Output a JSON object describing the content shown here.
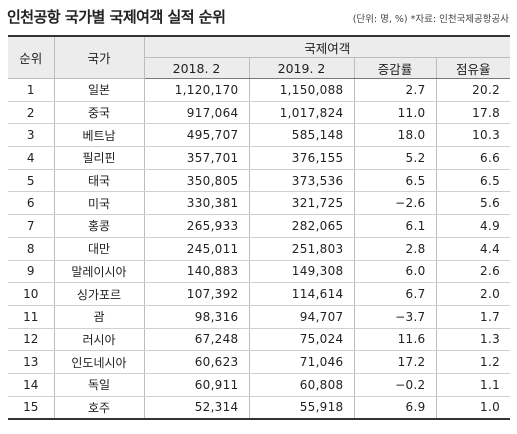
{
  "title": "인천공항 국가별 국제여객 실적 순위",
  "unit_note": "(단위: 명, %) *자료: 인천국제공항공사",
  "headers": {
    "rank": "순위",
    "country": "국가",
    "group": "국제여객",
    "y2018": "2018. 2",
    "y2019": "2019. 2",
    "change": "증감률",
    "share": "점유율"
  },
  "rows": [
    {
      "rank": "1",
      "country": "일본",
      "y2018": "1,120,170",
      "y2019": "1,150,088",
      "change": "2.7",
      "share": "20.2"
    },
    {
      "rank": "2",
      "country": "중국",
      "y2018": "917,064",
      "y2019": "1,017,824",
      "change": "11.0",
      "share": "17.8"
    },
    {
      "rank": "3",
      "country": "베트남",
      "y2018": "495,707",
      "y2019": "585,148",
      "change": "18.0",
      "share": "10.3"
    },
    {
      "rank": "4",
      "country": "필리핀",
      "y2018": "357,701",
      "y2019": "376,155",
      "change": "5.2",
      "share": "6.6"
    },
    {
      "rank": "5",
      "country": "태국",
      "y2018": "350,805",
      "y2019": "373,536",
      "change": "6.5",
      "share": "6.5"
    },
    {
      "rank": "6",
      "country": "미국",
      "y2018": "330,381",
      "y2019": "321,725",
      "change": "−2.6",
      "share": "5.6"
    },
    {
      "rank": "7",
      "country": "홍콩",
      "y2018": "265,933",
      "y2019": "282,065",
      "change": "6.1",
      "share": "4.9"
    },
    {
      "rank": "8",
      "country": "대만",
      "y2018": "245,011",
      "y2019": "251,803",
      "change": "2.8",
      "share": "4.4"
    },
    {
      "rank": "9",
      "country": "말레이시아",
      "y2018": "140,883",
      "y2019": "149,308",
      "change": "6.0",
      "share": "2.6"
    },
    {
      "rank": "10",
      "country": "싱가포르",
      "y2018": "107,392",
      "y2019": "114,614",
      "change": "6.7",
      "share": "2.0"
    },
    {
      "rank": "11",
      "country": "괌",
      "y2018": "98,316",
      "y2019": "94,707",
      "change": "−3.7",
      "share": "1.7"
    },
    {
      "rank": "12",
      "country": "러시아",
      "y2018": "67,248",
      "y2019": "75,024",
      "change": "11.6",
      "share": "1.3"
    },
    {
      "rank": "13",
      "country": "인도네시아",
      "y2018": "60,623",
      "y2019": "71,046",
      "change": "17.2",
      "share": "1.2"
    },
    {
      "rank": "14",
      "country": "독일",
      "y2018": "60,911",
      "y2019": "60,808",
      "change": "−0.2",
      "share": "1.1"
    },
    {
      "rank": "15",
      "country": "호주",
      "y2018": "52,314",
      "y2019": "55,918",
      "change": "6.9",
      "share": "1.0"
    }
  ]
}
